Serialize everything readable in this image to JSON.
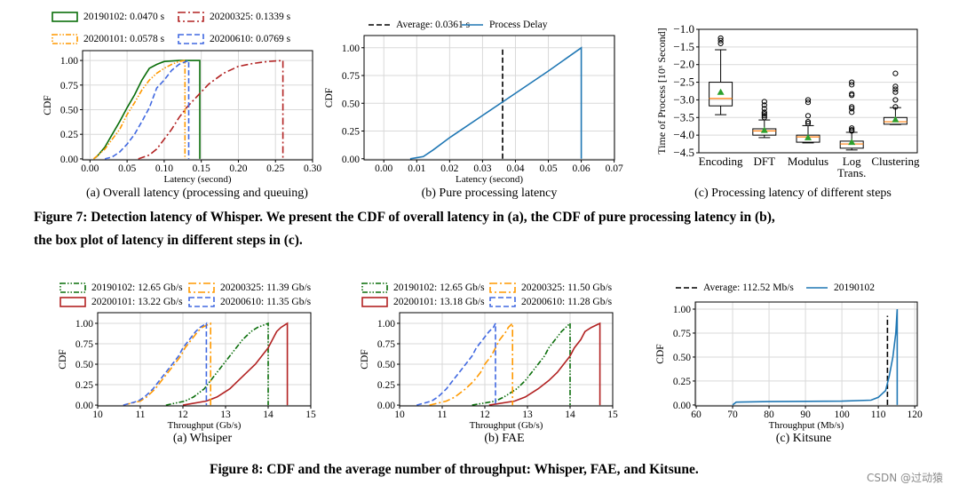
{
  "figure7": {
    "caption_line1": "Figure 7: Detection latency of Whisper. We present the CDF of overall latency in (a), the CDF of pure processing latency in (b),",
    "caption_line2": "the box plot of latency in different steps in (c).",
    "subcaptions": [
      "(a)  Overall latency (processing and queuing)",
      "(b)  Pure processing latency",
      "(c)  Processing latency of different steps"
    ]
  },
  "figure8": {
    "caption": "Figure 8: CDF and the average number of throughput: Whisper, FAE, and Kitsune.",
    "subcaptions": [
      "(a)  Whsiper",
      "(b)  FAE",
      "(c)  Kitsune"
    ]
  },
  "watermark": "CSDN @过动猿",
  "chart_data": [
    {
      "id": "fig7a",
      "type": "line",
      "xlabel": "Latency (second)",
      "ylabel": "CDF",
      "xlim": [
        -0.01,
        0.3
      ],
      "ylim": [
        -0.01,
        1.1
      ],
      "grid": true,
      "legend": "top-outside",
      "xticks": [
        0,
        0.05,
        0.1,
        0.15,
        0.2,
        0.25,
        0.3
      ],
      "xtick_labels": [
        "0.00",
        "0.05",
        "0.10",
        "0.15",
        "0.20",
        "0.25",
        "0.30"
      ],
      "yticks": [
        0,
        0.25,
        0.5,
        0.75,
        1.0
      ],
      "ytick_labels": [
        "0.00",
        "0.25",
        "0.50",
        "0.75",
        "1.00"
      ],
      "series": [
        {
          "name": "20190102: 0.0470 s",
          "color": "#0a6e0a",
          "style": "solid",
          "points": [
            [
              0.005,
              0
            ],
            [
              0.01,
              0.03
            ],
            [
              0.02,
              0.12
            ],
            [
              0.03,
              0.25
            ],
            [
              0.04,
              0.38
            ],
            [
              0.05,
              0.52
            ],
            [
              0.06,
              0.65
            ],
            [
              0.07,
              0.8
            ],
            [
              0.08,
              0.92
            ],
            [
              0.09,
              0.96
            ],
            [
              0.1,
              0.99
            ],
            [
              0.12,
              1.0
            ],
            [
              0.148,
              1.0
            ],
            [
              0.148,
              0
            ]
          ]
        },
        {
          "name": "20200101: 0.0578 s",
          "color": "#ff9900",
          "style": "dashdotdot",
          "points": [
            [
              0.005,
              0
            ],
            [
              0.02,
              0.1
            ],
            [
              0.03,
              0.2
            ],
            [
              0.04,
              0.3
            ],
            [
              0.05,
              0.45
            ],
            [
              0.06,
              0.57
            ],
            [
              0.07,
              0.7
            ],
            [
              0.08,
              0.8
            ],
            [
              0.09,
              0.87
            ],
            [
              0.1,
              0.92
            ],
            [
              0.11,
              0.96
            ],
            [
              0.12,
              0.99
            ],
            [
              0.128,
              1.0
            ],
            [
              0.128,
              0
            ]
          ]
        },
        {
          "name": "20200325: 0.1339 s",
          "color": "#b22222",
          "style": "dashdot",
          "points": [
            [
              0.065,
              0
            ],
            [
              0.08,
              0.04
            ],
            [
              0.09,
              0.1
            ],
            [
              0.1,
              0.2
            ],
            [
              0.11,
              0.3
            ],
            [
              0.12,
              0.42
            ],
            [
              0.13,
              0.52
            ],
            [
              0.14,
              0.6
            ],
            [
              0.15,
              0.68
            ],
            [
              0.16,
              0.76
            ],
            [
              0.18,
              0.87
            ],
            [
              0.2,
              0.94
            ],
            [
              0.22,
              0.97
            ],
            [
              0.24,
              0.99
            ],
            [
              0.26,
              1.0
            ],
            [
              0.26,
              0
            ]
          ]
        },
        {
          "name": "20200610: 0.0769 s",
          "color": "#4169e1",
          "style": "dashed",
          "points": [
            [
              0.02,
              0
            ],
            [
              0.03,
              0.02
            ],
            [
              0.04,
              0.07
            ],
            [
              0.05,
              0.15
            ],
            [
              0.06,
              0.25
            ],
            [
              0.07,
              0.38
            ],
            [
              0.08,
              0.52
            ],
            [
              0.09,
              0.72
            ],
            [
              0.1,
              0.8
            ],
            [
              0.11,
              0.9
            ],
            [
              0.12,
              0.96
            ],
            [
              0.133,
              1.0
            ],
            [
              0.133,
              0
            ]
          ]
        }
      ]
    },
    {
      "id": "fig7b",
      "type": "line",
      "xlabel": "Latency (second)",
      "ylabel": "CDF",
      "xlim": [
        -0.006,
        0.0701
      ],
      "ylim": [
        -0.01,
        1.11
      ],
      "grid": true,
      "legend": "top-outside",
      "xticks": [
        0,
        0.01,
        0.02,
        0.03,
        0.04,
        0.05,
        0.06,
        0.07
      ],
      "xtick_labels": [
        "0.00",
        "0.01",
        "0.02",
        "0.03",
        "0.04",
        "0.05",
        "0.06",
        "0.07"
      ],
      "yticks": [
        0,
        0.25,
        0.5,
        0.75,
        1.0
      ],
      "ytick_labels": [
        "0.00",
        "0.25",
        "0.50",
        "0.75",
        "1.00"
      ],
      "series": [
        {
          "name": "Average: 0.0361 s",
          "color": "#000000",
          "style": "dashed",
          "points": [
            [
              0.0361,
              0
            ],
            [
              0.0361,
              1.0
            ]
          ]
        },
        {
          "name": "Process Delay",
          "color": "#1f77b4",
          "style": "solid",
          "points": [
            [
              0.008,
              0
            ],
            [
              0.012,
              0.02
            ],
            [
              0.015,
              0.08
            ],
            [
              0.02,
              0.19
            ],
            [
              0.03,
              0.39
            ],
            [
              0.04,
              0.59
            ],
            [
              0.05,
              0.79
            ],
            [
              0.06,
              1.0
            ],
            [
              0.06,
              0
            ]
          ]
        }
      ]
    },
    {
      "id": "fig7c",
      "type": "box",
      "ylabel": "Time of Process [10ˣ Second]",
      "ylim": [
        -4.5,
        -1.0
      ],
      "grid": true,
      "yticks": [
        -4.5,
        -4.0,
        -3.5,
        -3.0,
        -2.5,
        -2.0,
        -1.5,
        -1.0
      ],
      "ytick_labels": [
        "−4.5",
        "−4.0",
        "−3.5",
        "−3.0",
        "−2.5",
        "−2.0",
        "−1.5",
        "−1.0"
      ],
      "categories": [
        "Encoding",
        "DFT",
        "Modulus",
        "Log\nTrans.",
        "Clustering"
      ],
      "boxes": [
        {
          "whislo": -3.42,
          "q1": -3.17,
          "median": -2.96,
          "q3": -2.5,
          "whishi": -1.58,
          "mean": -2.78,
          "fliers": [
            -1.25,
            -1.32,
            -1.4
          ]
        },
        {
          "whislo": -4.07,
          "q1": -4.0,
          "median": -3.88,
          "q3": -3.82,
          "whishi": -3.57,
          "mean": -3.86,
          "fliers": [
            -3.05,
            -3.15,
            -3.25,
            -3.35,
            -3.4,
            -3.45,
            -3.5
          ]
        },
        {
          "whislo": -4.22,
          "q1": -4.2,
          "median": -4.05,
          "q3": -4.0,
          "whishi": -3.73,
          "mean": -4.07,
          "fliers": [
            -3.0,
            -3.07,
            -3.45,
            -3.62,
            -3.67
          ]
        },
        {
          "whislo": -4.42,
          "q1": -4.37,
          "median": -4.25,
          "q3": -4.17,
          "whishi": -3.92,
          "mean": -4.2,
          "fliers": [
            -2.5,
            -2.57,
            -2.83,
            -2.87,
            -3.2,
            -3.25,
            -3.35,
            -3.8,
            -3.85,
            -3.88
          ]
        },
        {
          "whislo": -3.7,
          "q1": -3.69,
          "median": -3.62,
          "q3": -3.5,
          "whishi": -3.22,
          "mean": -3.56,
          "fliers": [
            -2.25,
            -2.62,
            -2.7,
            -2.78,
            -3.0,
            -3.2
          ]
        }
      ],
      "colors": {
        "median": "#ff7f0e",
        "mean": "#2ca02c"
      }
    },
    {
      "id": "fig8a",
      "type": "line",
      "xlabel": "Throughput (Gb/s)",
      "ylabel": "CDF",
      "xlim": [
        10,
        15
      ],
      "ylim": [
        -0.01,
        1.13
      ],
      "grid": true,
      "legend": "top-outside",
      "xticks": [
        10,
        11,
        12,
        13,
        14,
        15
      ],
      "xtick_labels": [
        "10",
        "11",
        "12",
        "13",
        "14",
        "15"
      ],
      "yticks": [
        0,
        0.25,
        0.5,
        0.75,
        1.0
      ],
      "ytick_labels": [
        "0.00",
        "0.25",
        "0.50",
        "0.75",
        "1.00"
      ],
      "quantile_levels": [
        0,
        0.05,
        0.1,
        0.2,
        0.3,
        0.4,
        0.5,
        0.6,
        0.7,
        0.8,
        0.9,
        0.95,
        1
      ],
      "series": [
        {
          "name": "20190102: 12.65 Gb/s",
          "color": "#0a6e0a",
          "style": "dashdotdot",
          "x": [
            11.6,
            12.05,
            12.25,
            12.5,
            12.65,
            12.8,
            12.95,
            13.1,
            13.25,
            13.4,
            13.6,
            13.75,
            14.0
          ]
        },
        {
          "name": "20200101: 13.22 Gb/s",
          "color": "#b22222",
          "style": "solid",
          "x": [
            12.0,
            12.55,
            12.8,
            13.1,
            13.3,
            13.5,
            13.7,
            13.85,
            14.0,
            14.1,
            14.2,
            14.3,
            14.45
          ]
        },
        {
          "name": "20200325: 11.39 Gb/s",
          "color": "#ff9900",
          "style": "dashdot",
          "x": [
            10.6,
            11.0,
            11.15,
            11.35,
            11.5,
            11.65,
            11.8,
            11.95,
            12.05,
            12.2,
            12.35,
            12.45,
            12.65
          ]
        },
        {
          "name": "20200610: 11.35 Gb/s",
          "color": "#4169e1",
          "style": "dashed",
          "x": [
            10.6,
            10.95,
            11.1,
            11.3,
            11.45,
            11.6,
            11.75,
            11.9,
            12.0,
            12.15,
            12.3,
            12.4,
            12.55
          ]
        }
      ]
    },
    {
      "id": "fig8b",
      "type": "line",
      "xlabel": "Throughput (Gb/s)",
      "ylabel": "CDF",
      "xlim": [
        10,
        15
      ],
      "ylim": [
        -0.01,
        1.13
      ],
      "grid": true,
      "legend": "top-outside",
      "xticks": [
        10,
        11,
        12,
        13,
        14,
        15
      ],
      "xtick_labels": [
        "10",
        "11",
        "12",
        "13",
        "14",
        "15"
      ],
      "yticks": [
        0,
        0.25,
        0.5,
        0.75,
        1.0
      ],
      "ytick_labels": [
        "0.00",
        "0.25",
        "0.50",
        "0.75",
        "1.00"
      ],
      "quantile_levels": [
        0,
        0.05,
        0.1,
        0.2,
        0.3,
        0.4,
        0.5,
        0.6,
        0.7,
        0.8,
        0.9,
        0.95,
        1
      ],
      "series": [
        {
          "name": "20190102: 12.65 Gb/s",
          "color": "#0a6e0a",
          "style": "dashdotdot",
          "x": [
            11.7,
            12.25,
            12.45,
            12.75,
            12.95,
            13.1,
            13.25,
            13.4,
            13.5,
            13.65,
            13.8,
            13.9,
            14.0
          ]
        },
        {
          "name": "20200101: 13.18 Gb/s",
          "color": "#b22222",
          "style": "solid",
          "x": [
            12.1,
            12.7,
            12.95,
            13.25,
            13.5,
            13.7,
            13.85,
            14.0,
            14.1,
            14.25,
            14.35,
            14.5,
            14.7
          ]
        },
        {
          "name": "20200325: 11.50 Gb/s",
          "color": "#ff9900",
          "style": "dashdot",
          "x": [
            10.7,
            11.1,
            11.3,
            11.55,
            11.75,
            11.9,
            12.0,
            12.15,
            12.25,
            12.35,
            12.5,
            12.55,
            12.65
          ]
        },
        {
          "name": "20200610: 11.28 Gb/s",
          "color": "#4169e1",
          "style": "dashed",
          "x": [
            10.4,
            10.75,
            10.9,
            11.1,
            11.25,
            11.4,
            11.55,
            11.7,
            11.8,
            11.95,
            12.1,
            12.2,
            12.25
          ]
        }
      ]
    },
    {
      "id": "fig8c",
      "type": "line",
      "xlabel": "Throughput (Mb/s)",
      "ylabel": "CDF",
      "xlim": [
        59.75,
        120.7
      ],
      "ylim": [
        -0.01,
        1.074
      ],
      "grid": true,
      "legend": "top-outside",
      "xticks": [
        60,
        70,
        80,
        90,
        100,
        110,
        120
      ],
      "xtick_labels": [
        "60",
        "70",
        "80",
        "90",
        "100",
        "110",
        "120"
      ],
      "yticks": [
        0,
        0.25,
        0.5,
        0.75,
        1.0
      ],
      "ytick_labels": [
        "0.00",
        "0.25",
        "0.50",
        "0.75",
        "1.00"
      ],
      "series": [
        {
          "name": "Average: 112.52 Mb/s",
          "color": "#000000",
          "style": "dashed",
          "points": [
            [
              112.52,
              0
            ],
            [
              112.52,
              0.93
            ]
          ]
        },
        {
          "name": "20190102",
          "color": "#1f77b4",
          "style": "solid",
          "points": [
            [
              70,
              0
            ],
            [
              71,
              0.03
            ],
            [
              80,
              0.035
            ],
            [
              100,
              0.04
            ],
            [
              108,
              0.05
            ],
            [
              110,
              0.08
            ],
            [
              112,
              0.15
            ],
            [
              113,
              0.3
            ],
            [
              114,
              0.5
            ],
            [
              114.8,
              0.75
            ],
            [
              115.2,
              1.0
            ],
            [
              115.2,
              0
            ]
          ]
        }
      ]
    }
  ]
}
